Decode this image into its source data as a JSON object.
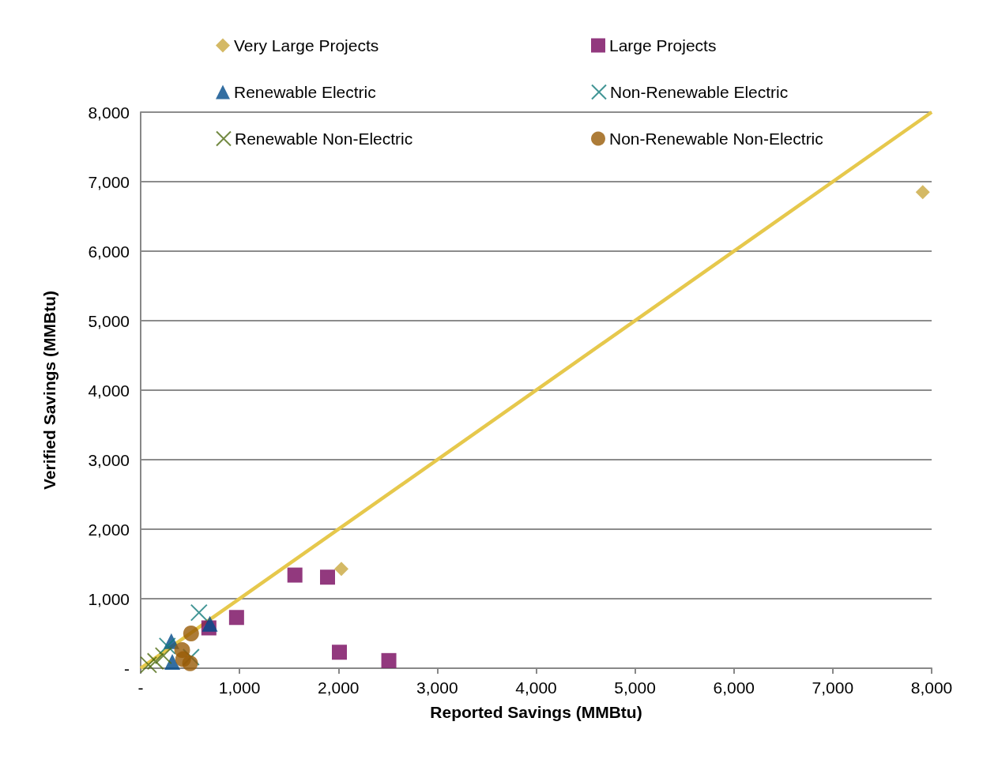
{
  "chart_data": {
    "type": "scatter",
    "xlabel": "Reported Savings (MMBtu)",
    "ylabel": "Verified Savings (MMBtu)",
    "xlim": [
      0,
      8000
    ],
    "xticks": [
      {
        "value": 0,
        "label": "-"
      },
      {
        "value": 1000,
        "label": "1,000"
      },
      {
        "value": 2000,
        "label": "2,000"
      },
      {
        "value": 3000,
        "label": "3,000"
      },
      {
        "value": 4000,
        "label": "4,000"
      },
      {
        "value": 5000,
        "label": "5,000"
      },
      {
        "value": 6000,
        "label": "6,000"
      },
      {
        "value": 7000,
        "label": "7,000"
      },
      {
        "value": 8000,
        "label": "8,000"
      }
    ],
    "ylim": [
      0,
      8000
    ],
    "yticks": [
      {
        "value": 0,
        "label": "-"
      },
      {
        "value": 1000,
        "label": "1,000"
      },
      {
        "value": 2000,
        "label": "2,000"
      },
      {
        "value": 3000,
        "label": "3,000"
      },
      {
        "value": 4000,
        "label": "4,000"
      },
      {
        "value": 5000,
        "label": "5,000"
      },
      {
        "value": 6000,
        "label": "6,000"
      },
      {
        "value": 7000,
        "label": "7,000"
      },
      {
        "value": 8000,
        "label": "8,000"
      }
    ],
    "grid": "y",
    "legend": "top",
    "series": [
      {
        "name": "Very Large Projects",
        "color": "#c9a83e",
        "marker": "diamond",
        "x": [
          7910,
          2030
        ],
        "values": [
          6850,
          1430
        ]
      },
      {
        "name": "Large Projects",
        "color": "#77075e",
        "marker": "square",
        "x": [
          1560,
          1890,
          970,
          690,
          2010,
          2510
        ],
        "values": [
          1340,
          1310,
          730,
          580,
          230,
          110
        ]
      },
      {
        "name": "Renewable Electric",
        "color": "#004a8a",
        "marker": "triangle",
        "x": [
          700,
          310,
          320
        ],
        "values": [
          640,
          390,
          90
        ]
      },
      {
        "name": "Non-Renewable Electric",
        "color": "#127b7a",
        "marker": "cross",
        "x": [
          590,
          270,
          510
        ],
        "values": [
          800,
          320,
          160
        ]
      },
      {
        "name": "Renewable Non-Electric",
        "color": "#4f6b12",
        "marker": "cross",
        "x": [
          80,
          150,
          230
        ],
        "values": [
          50,
          100,
          180
        ]
      },
      {
        "name": "Non-Renewable Non-Electric",
        "color": "#995b06",
        "marker": "circle",
        "x": [
          510,
          420,
          430,
          500
        ],
        "values": [
          500,
          260,
          130,
          70
        ]
      },
      {
        "type": "line",
        "color": "#e6c84c",
        "marker": "none",
        "x": [
          0,
          8000
        ],
        "values": [
          0,
          8000
        ]
      }
    ]
  }
}
